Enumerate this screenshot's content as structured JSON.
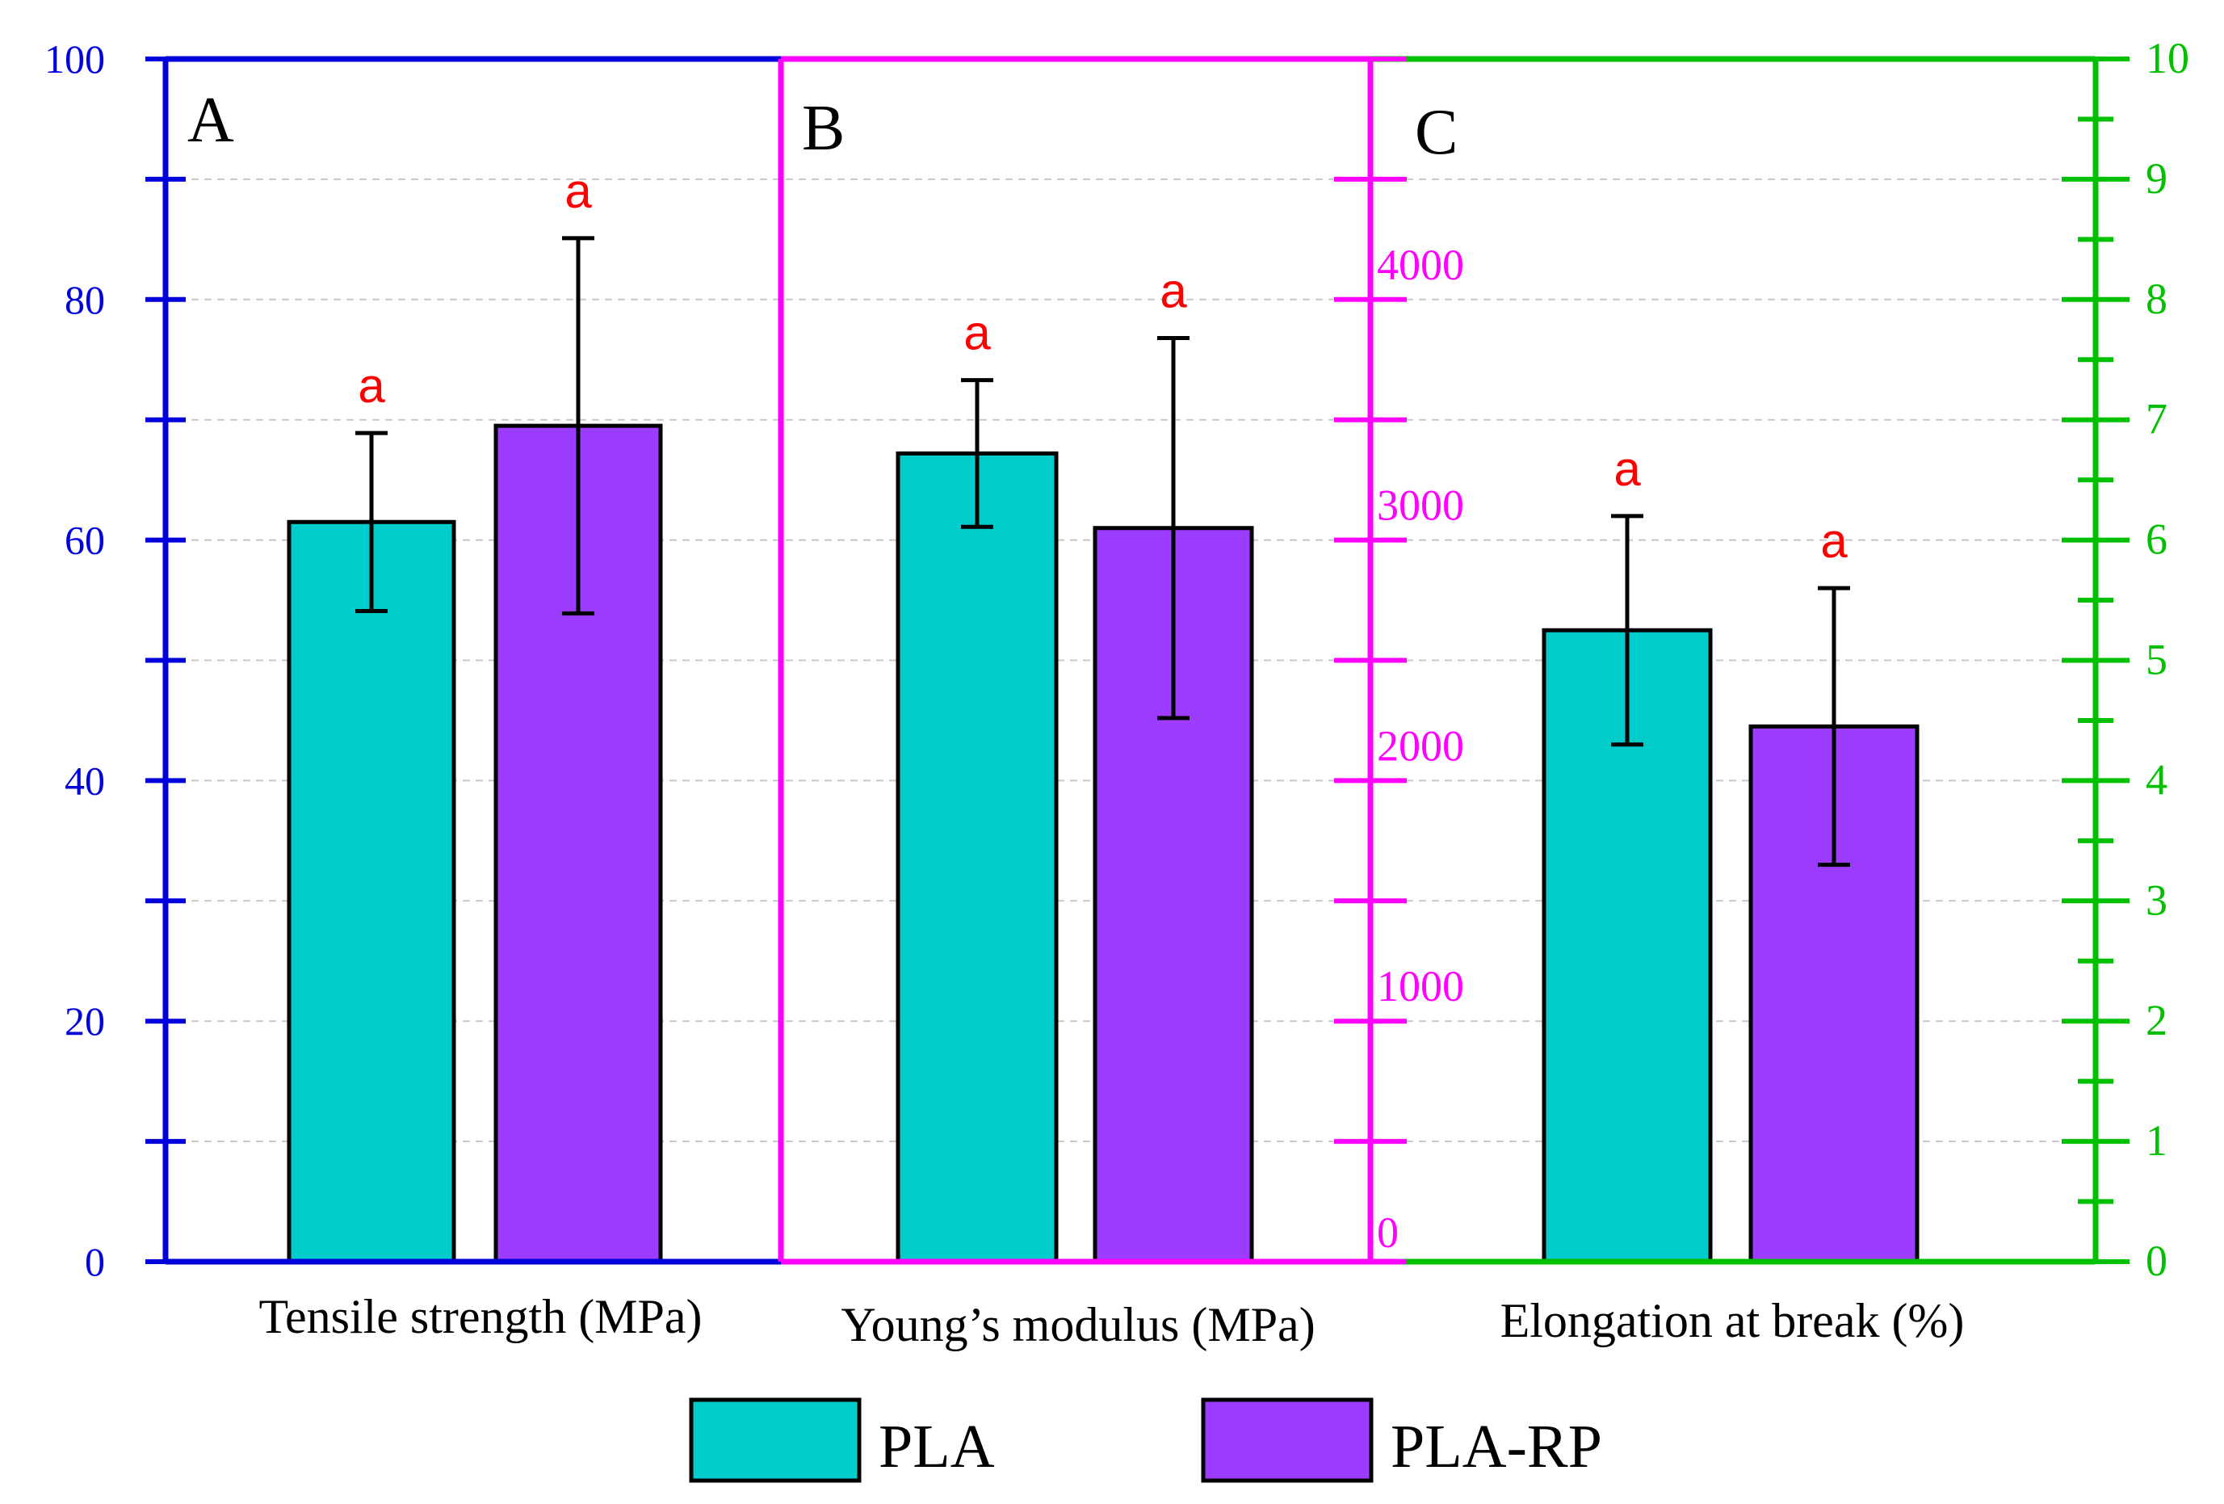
{
  "chart_data": {
    "type": "bar",
    "series_names": [
      "PLA",
      "PLA-RP"
    ],
    "colors": {
      "PLA": "#00CCCC",
      "PLA-RP": "#9B3CFF",
      "panel_a": "#0000DD",
      "panel_b": "#FF00FF",
      "panel_c": "#00C000",
      "significance": "#FF0000"
    },
    "panels": [
      {
        "id": "A",
        "label": "A",
        "xlabel": "Tensile strength (MPa)",
        "ylim": [
          0,
          100
        ],
        "ticks": [
          0,
          20,
          40,
          60,
          80,
          100
        ],
        "tick_labels": [
          "0",
          "20",
          "40",
          "60",
          "80",
          "100"
        ],
        "values": [
          61.5,
          69.5
        ],
        "errors": [
          7.4,
          15.6
        ],
        "significance": [
          "a",
          "a"
        ]
      },
      {
        "id": "B",
        "label": "B",
        "xlabel": "Young’s modulus (MPa)",
        "ylim": [
          0,
          5000
        ],
        "ticks": [
          0,
          1000,
          2000,
          3000,
          4000
        ],
        "tick_labels": [
          "0",
          "1000",
          "2000",
          "3000",
          "4000"
        ],
        "values": [
          3360,
          3050
        ],
        "errors": [
          305,
          790
        ],
        "significance": [
          "a",
          "a"
        ]
      },
      {
        "id": "C",
        "label": "C",
        "xlabel": "Elongation at break (%)",
        "ylim": [
          0,
          10
        ],
        "ticks": [
          0,
          1,
          2,
          3,
          4,
          5,
          6,
          7,
          8,
          9,
          10
        ],
        "tick_labels": [
          "0",
          "1",
          "2",
          "3",
          "4",
          "5",
          "6",
          "7",
          "8",
          "9",
          "10"
        ],
        "values": [
          5.25,
          4.45
        ],
        "errors": [
          0.95,
          1.15
        ],
        "significance": [
          "a",
          "a"
        ]
      }
    ],
    "legend": [
      "PLA",
      "PLA-RP"
    ],
    "grid": true,
    "legend_position": "bottom-center"
  }
}
